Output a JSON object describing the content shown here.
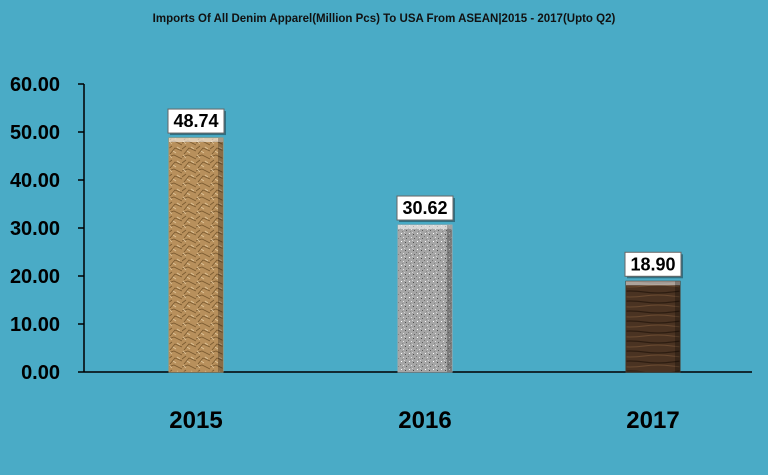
{
  "chart_data": {
    "type": "bar",
    "title": "Imports Of All Denim Apparel(Million Pcs) To USA From ASEAN|2015 - 2017(Upto Q2)",
    "categories": [
      "2015",
      "2016",
      "2017"
    ],
    "values": [
      48.74,
      30.62,
      18.9
    ],
    "value_labels": [
      "48.74",
      "30.62",
      "18.90"
    ],
    "y_ticks": [
      "0.00",
      "10.00",
      "20.00",
      "30.00",
      "40.00",
      "50.00",
      "60.00"
    ],
    "ylim": [
      0,
      60
    ],
    "xlabel": "",
    "ylabel": "",
    "grid": false,
    "legend": "none",
    "colors": {
      "background": "#4aabc6",
      "bar_2015": "#b8905c",
      "bar_2016": "#a8a8a8",
      "bar_2017": "#4a3322",
      "axis": "#000000"
    }
  }
}
